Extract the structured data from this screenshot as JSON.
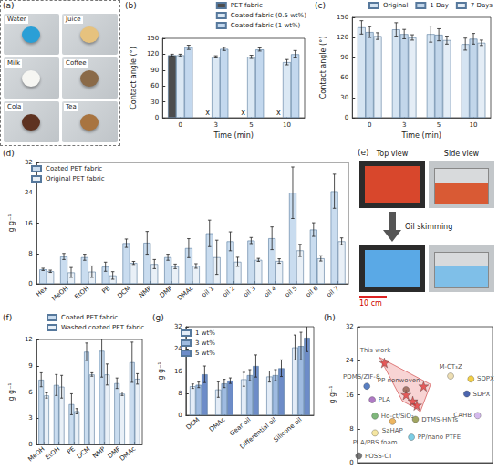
{
  "chart_data": [
    {
      "title": "(b)",
      "type": "bar",
      "xlabel": "Time (min)",
      "ylabel": "Contact angle (°)",
      "categories": [
        "0",
        "3",
        "5",
        "10"
      ],
      "series": [
        {
          "name": "PET fabric",
          "color": "#4d4d4d",
          "values": [
            118,
            null,
            null,
            null
          ],
          "errors": [
            2,
            null,
            null,
            null
          ]
        },
        {
          "name": "Coated fabric (0.5 wt%)",
          "color": "#dbe8f4",
          "values": [
            118,
            115,
            115,
            105
          ],
          "errors": [
            2,
            2,
            3,
            5
          ]
        },
        {
          "name": "Coated fabric (1 wt%)",
          "color": "#c3d8ee",
          "values": [
            133,
            130,
            129,
            120
          ],
          "errors": [
            4,
            3,
            3,
            7
          ]
        }
      ],
      "annotations": [
        {
          "category": "3",
          "series": "PET fabric",
          "text": "x"
        },
        {
          "category": "5",
          "series": "PET fabric",
          "text": "x"
        },
        {
          "category": "10",
          "series": "PET fabric",
          "text": "x"
        }
      ],
      "ylim": [
        0,
        150
      ],
      "yticks": [
        0,
        30,
        60,
        90,
        120,
        150
      ],
      "legend": "top-right",
      "grid": false
    },
    {
      "title": "(c)",
      "type": "bar",
      "xlabel": "Time (min)",
      "ylabel": "Contact angle (°)",
      "categories": [
        "0",
        "3",
        "5",
        "10"
      ],
      "series": [
        {
          "name": "Original",
          "color": "#d5e4f2",
          "values": [
            135,
            132,
            125,
            110
          ],
          "errors": [
            10,
            10,
            12,
            9
          ]
        },
        {
          "name": "1 Day",
          "color": "#c2d6ea",
          "values": [
            128,
            125,
            124,
            118
          ],
          "errors": [
            8,
            7,
            9,
            8
          ]
        },
        {
          "name": "7 Days",
          "color": "#e4edf6",
          "values": [
            122,
            120,
            116,
            112
          ],
          "errors": [
            5,
            4,
            6,
            4
          ]
        }
      ],
      "ylim": [
        0,
        150
      ],
      "yticks": [
        0,
        30,
        60,
        90,
        120,
        150
      ],
      "legend": "top-right",
      "grid": false
    },
    {
      "title": "(d)",
      "type": "bar",
      "ylabel": "g g⁻¹",
      "categories": [
        "Hex",
        "MeOH",
        "EtOH",
        "PE",
        "DCM",
        "NMP",
        "DMF",
        "DMAc",
        "oil 1",
        "oil 2",
        "oil 3",
        "oil 4",
        "oil 5",
        "oil 6",
        "oil 7"
      ],
      "series": [
        {
          "name": "Coated PET fabric",
          "color": "#c9dcef",
          "values": [
            3.8,
            7.2,
            7.0,
            4.5,
            10.7,
            10.8,
            7.0,
            9.4,
            13.3,
            11.2,
            11.4,
            12.0,
            24.0,
            14.3,
            24.4
          ],
          "errors": [
            0.3,
            0.8,
            0.8,
            1.2,
            1.1,
            3.0,
            0.8,
            2.5,
            3.5,
            2.5,
            0.8,
            3.0,
            6.8,
            1.8,
            4.5
          ]
        },
        {
          "name": "Original PET fabric",
          "color": "#e9f0f7",
          "values": [
            3.3,
            3.0,
            3.2,
            2.2,
            5.5,
            5.2,
            4.6,
            4.7,
            7.0,
            5.8,
            6.3,
            6.0,
            8.8,
            6.7,
            11.2
          ],
          "errors": [
            0.3,
            1.3,
            1.5,
            1.0,
            0.4,
            1.2,
            0.6,
            0.6,
            4.5,
            1.2,
            0.4,
            0.6,
            1.6,
            0.7,
            0.9
          ]
        }
      ],
      "ylim": [
        0,
        32
      ],
      "yticks": [
        0,
        8,
        16,
        24,
        32
      ],
      "legend": "top-left",
      "grid": false
    },
    {
      "title": "(f)",
      "type": "bar",
      "ylabel": "g g⁻¹",
      "categories": [
        "MeOH",
        "EtOH",
        "PE",
        "DCM",
        "NMP",
        "DMF",
        "DMAc"
      ],
      "series": [
        {
          "name": "Coated PET fabric",
          "color": "#c9dcef",
          "values": [
            7.4,
            6.8,
            4.6,
            10.6,
            10.7,
            7.0,
            9.4
          ],
          "errors": [
            0.8,
            1.2,
            1.2,
            1.0,
            3.0,
            0.6,
            2.3
          ]
        },
        {
          "name": "Washed coated PET fabric",
          "color": "#e9f0f7",
          "values": [
            5.6,
            6.6,
            3.8,
            8.0,
            8.0,
            5.8,
            7.5
          ],
          "errors": [
            0.3,
            1.3,
            0.3,
            0.2,
            1.2,
            0.2,
            0.6
          ]
        }
      ],
      "ylim": [
        0,
        12
      ],
      "yticks": [
        0,
        3,
        6,
        9,
        12
      ],
      "legend": "top-right",
      "grid": false
    },
    {
      "title": "(g)",
      "type": "bar",
      "ylabel": "g g⁻¹",
      "categories": [
        "DCM",
        "DMAc",
        "Gear oil",
        "Differential oil",
        "Silicone oil"
      ],
      "series": [
        {
          "name": "1 wt%",
          "color": "#e3ecf7",
          "values": [
            10.5,
            9.3,
            13.0,
            14.0,
            24.5
          ],
          "errors": [
            0.8,
            2.8,
            2.5,
            2.0,
            4.5
          ]
        },
        {
          "name": "3 wt%",
          "color": "#9fbbe0",
          "values": [
            11.0,
            11.5,
            14.5,
            14.5,
            25.0
          ],
          "errors": [
            1.0,
            1.5,
            2.0,
            2.0,
            5.0
          ]
        },
        {
          "name": "5 wt%",
          "color": "#6d8cc8",
          "values": [
            14.8,
            12.5,
            17.8,
            17.0,
            28.0
          ],
          "errors": [
            3.0,
            1.0,
            4.0,
            3.0,
            5.0
          ]
        }
      ],
      "ylim": [
        0,
        32
      ],
      "yticks": [
        0,
        8,
        16,
        24,
        32
      ],
      "legend": "top-left",
      "grid": false
    },
    {
      "title": "(h)",
      "type": "scatter",
      "ylabel": "g g⁻¹",
      "xlim": [
        0,
        10
      ],
      "ylim": [
        0,
        32
      ],
      "yticks": [
        0,
        8,
        16,
        24,
        32
      ],
      "tick_labels": "y",
      "grid": false,
      "series": [
        {
          "name": "This work",
          "color": "#e03a3a",
          "marker": "star",
          "x": [
            2.0,
            4.9,
            3.6,
            4.1,
            4.4
          ],
          "values": [
            23.5,
            18,
            16,
            14.5,
            13.5
          ]
        },
        {
          "name": "PDMS/ZIF-8",
          "color": "#2f5fb3",
          "marker": "circle",
          "x": [
            0.7
          ],
          "values": [
            18
          ]
        },
        {
          "name": "PLA",
          "color": "#9b59b6",
          "marker": "circle",
          "x": [
            1.1
          ],
          "values": [
            14.8
          ]
        },
        {
          "name": "PP nonwoven",
          "color": "#8d5a4a",
          "marker": "circle",
          "x": [
            3.6
          ],
          "values": [
            17.2
          ]
        },
        {
          "name": "M-CT₃Z",
          "color": "#e8d6a0",
          "marker": "circle",
          "x": [
            6.9
          ],
          "values": [
            20.4
          ]
        },
        {
          "name": "SDPX",
          "color": "#f0c419",
          "marker": "circle",
          "x": [
            8.4
          ],
          "values": [
            19.7
          ]
        },
        {
          "name": "SDPX",
          "color": "#1f3f9a",
          "marker": "circle",
          "x": [
            8.1
          ],
          "values": [
            16.2
          ]
        },
        {
          "name": "Ho-ct/SiO₂",
          "color": "#5fa55a",
          "marker": "circle",
          "x": [
            1.3
          ],
          "values": [
            11.0
          ]
        },
        {
          "name": "DTMS-HNTs",
          "color": "#8a8f3a",
          "marker": "circle",
          "x": [
            4.3
          ],
          "values": [
            10.2
          ]
        },
        {
          "name": "SaHAP",
          "color": "#e8a23a",
          "marker": "circle",
          "x": [
            2.6
          ],
          "values": [
            9.7
          ]
        },
        {
          "name": "PLA/PBS foam",
          "color": "#f2e08a",
          "marker": "circle",
          "x": [
            1.3
          ],
          "values": [
            7.0
          ]
        },
        {
          "name": "PP/nano PTFE",
          "color": "#5bc0de",
          "marker": "circle",
          "x": [
            4.0
          ],
          "values": [
            6.0
          ]
        },
        {
          "name": "CAHB",
          "color": "#c9a7e8",
          "marker": "circle",
          "x": [
            8.9
          ],
          "values": [
            11.1
          ]
        },
        {
          "name": "POSS-CT",
          "color": "#555555",
          "marker": "circle",
          "x": [
            0.1
          ],
          "values": [
            1.6
          ]
        }
      ]
    }
  ],
  "photos": {
    "a": {
      "title": "(a)",
      "labels": [
        "Water",
        "Juice",
        "Milk",
        "Coffee",
        "Cola",
        "Tea"
      ]
    },
    "e": {
      "title": "(e)",
      "views": [
        "Top view",
        "Side view"
      ],
      "action": "Oil skimming",
      "scale": "10 cm"
    }
  }
}
